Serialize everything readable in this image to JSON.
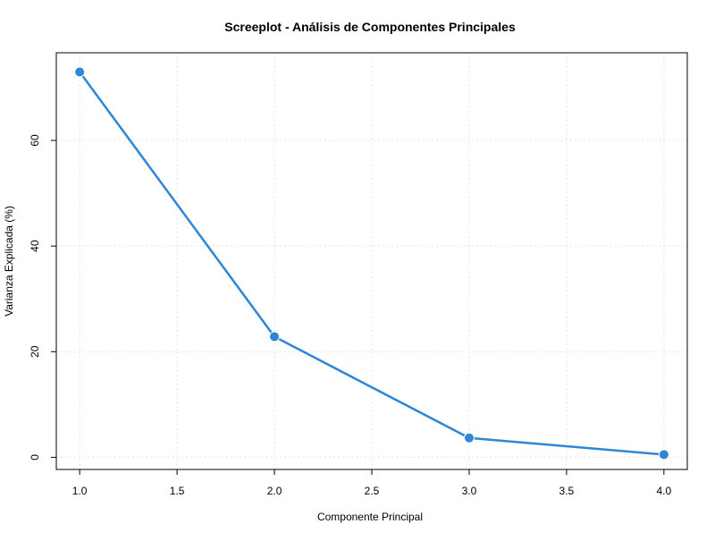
{
  "chart_data": {
    "type": "line",
    "title": "Screeplot - Análisis de Componentes Principales",
    "xlabel": "Componente Principal",
    "ylabel": "Varianza Explicada (%)",
    "x": [
      1,
      2,
      3,
      4
    ],
    "series": [
      {
        "values": [
          72.96,
          22.85,
          3.67,
          0.52
        ],
        "color": "#2e86d6",
        "marker": "circle"
      }
    ],
    "xlim": [
      0.88,
      4.12
    ],
    "ylim": [
      -2.3,
      76.6
    ],
    "xticks": [
      1.0,
      1.5,
      2.0,
      2.5,
      3.0,
      3.5,
      4.0
    ],
    "xtick_labels": [
      "1.0",
      "1.5",
      "2.0",
      "2.5",
      "3.0",
      "3.5",
      "4.0"
    ],
    "yticks": [
      0,
      20,
      40,
      60
    ],
    "ytick_labels": [
      "0",
      "20",
      "40",
      "60"
    ],
    "grid": true,
    "legend": false
  }
}
